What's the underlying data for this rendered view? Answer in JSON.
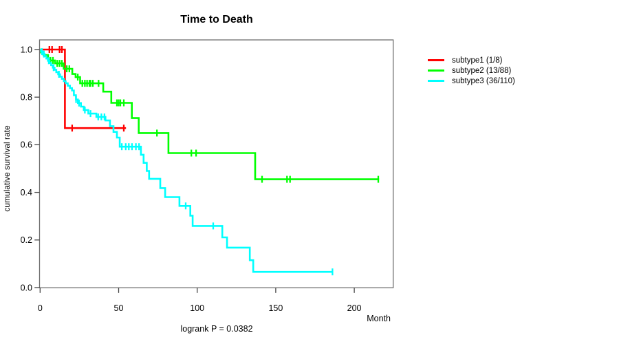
{
  "chart_data": {
    "type": "line",
    "variant": "kaplan-meier-step",
    "title": "Time to Death",
    "xlabel": "Month",
    "ylabel": "cumulative survival rate",
    "annotation": "logrank P = 0.0382",
    "x_ticks": [
      0,
      50,
      100,
      150,
      200
    ],
    "y_ticks": [
      "0.0",
      "0.2",
      "0.4",
      "0.6",
      "0.8",
      "1.0"
    ],
    "xlim": [
      0,
      225
    ],
    "ylim": [
      0.0,
      1.0
    ],
    "grid": "off",
    "legend_position": "right-outside",
    "series": [
      {
        "name": "subtype1 (1/8)",
        "color": "#FF0000",
        "steps": [
          [
            0,
            1.0
          ],
          [
            15.8,
            0.67
          ]
        ],
        "end": 54.7,
        "censors": [
          [
            5.9,
            1.0
          ],
          [
            7.6,
            1.0
          ],
          [
            12.4,
            1.0
          ],
          [
            13.9,
            1.0
          ],
          [
            20.4,
            0.67
          ],
          [
            53.3,
            0.67
          ]
        ]
      },
      {
        "name": "subtype2 (13/88)",
        "color": "#00FF00",
        "steps": [
          [
            0,
            1.0
          ],
          [
            0.5,
            0.988
          ],
          [
            2.2,
            0.977
          ],
          [
            5.1,
            0.954
          ],
          [
            9.5,
            0.942
          ],
          [
            15.0,
            0.919
          ],
          [
            20.5,
            0.897
          ],
          [
            22.6,
            0.884
          ],
          [
            25.5,
            0.858
          ],
          [
            40.2,
            0.823
          ],
          [
            45.3,
            0.776
          ],
          [
            58.4,
            0.712
          ],
          [
            62.8,
            0.649
          ],
          [
            81.7,
            0.565
          ],
          [
            136.9,
            0.455
          ]
        ],
        "end": 215.8,
        "censors": [
          [
            6.6,
            0.954
          ],
          [
            8.2,
            0.954
          ],
          [
            10.9,
            0.942
          ],
          [
            12.4,
            0.942
          ],
          [
            13.9,
            0.942
          ],
          [
            17.0,
            0.919
          ],
          [
            18.6,
            0.919
          ],
          [
            24.0,
            0.884
          ],
          [
            26.9,
            0.858
          ],
          [
            28.5,
            0.858
          ],
          [
            29.9,
            0.858
          ],
          [
            31.4,
            0.858
          ],
          [
            32.1,
            0.858
          ],
          [
            33.6,
            0.858
          ],
          [
            37.2,
            0.858
          ],
          [
            48.9,
            0.776
          ],
          [
            50.0,
            0.776
          ],
          [
            51.1,
            0.776
          ],
          [
            53.3,
            0.776
          ],
          [
            74.4,
            0.649
          ],
          [
            96.3,
            0.565
          ],
          [
            99.3,
            0.565
          ],
          [
            141.3,
            0.455
          ],
          [
            157.2,
            0.455
          ],
          [
            159.1,
            0.455
          ],
          [
            215.3,
            0.455
          ]
        ]
      },
      {
        "name": "subtype3 (36/110)",
        "color": "#00FFFF",
        "steps": [
          [
            0,
            1.0
          ],
          [
            0.7,
            0.991
          ],
          [
            1.8,
            0.981
          ],
          [
            2.9,
            0.972
          ],
          [
            4.0,
            0.962
          ],
          [
            5.0,
            0.953
          ],
          [
            6.0,
            0.943
          ],
          [
            7.0,
            0.934
          ],
          [
            8.1,
            0.924
          ],
          [
            9.2,
            0.915
          ],
          [
            10.3,
            0.905
          ],
          [
            11.5,
            0.896
          ],
          [
            12.7,
            0.886
          ],
          [
            13.9,
            0.877
          ],
          [
            15.1,
            0.867
          ],
          [
            16.3,
            0.858
          ],
          [
            17.6,
            0.848
          ],
          [
            19.0,
            0.838
          ],
          [
            20.3,
            0.828
          ],
          [
            21.5,
            0.808
          ],
          [
            22.8,
            0.79
          ],
          [
            24.1,
            0.775
          ],
          [
            26.0,
            0.76
          ],
          [
            27.8,
            0.746
          ],
          [
            30.7,
            0.731
          ],
          [
            35.8,
            0.717
          ],
          [
            41.6,
            0.702
          ],
          [
            44.5,
            0.678
          ],
          [
            46.7,
            0.654
          ],
          [
            48.9,
            0.63
          ],
          [
            50.7,
            0.592
          ],
          [
            64.2,
            0.558
          ],
          [
            65.9,
            0.524
          ],
          [
            67.9,
            0.49
          ],
          [
            69.4,
            0.457
          ],
          [
            76.5,
            0.418
          ],
          [
            79.6,
            0.38
          ],
          [
            88.7,
            0.343
          ],
          [
            95.6,
            0.302
          ],
          [
            97.1,
            0.259
          ],
          [
            116.0,
            0.211
          ],
          [
            119.0,
            0.168
          ],
          [
            133.5,
            0.115
          ],
          [
            135.7,
            0.066
          ]
        ],
        "end": 186.1,
        "censors": [
          [
            1.2,
            0.991
          ],
          [
            2.4,
            0.981
          ],
          [
            5.5,
            0.953
          ],
          [
            8.6,
            0.924
          ],
          [
            12.0,
            0.896
          ],
          [
            22.9,
            0.79
          ],
          [
            24.8,
            0.775
          ],
          [
            28.5,
            0.746
          ],
          [
            32.1,
            0.731
          ],
          [
            37.0,
            0.717
          ],
          [
            39.0,
            0.717
          ],
          [
            41.0,
            0.717
          ],
          [
            52.0,
            0.592
          ],
          [
            54.5,
            0.592
          ],
          [
            56.5,
            0.592
          ],
          [
            58.5,
            0.592
          ],
          [
            61.0,
            0.592
          ],
          [
            63.0,
            0.592
          ],
          [
            92.7,
            0.343
          ],
          [
            110.2,
            0.259
          ],
          [
            186.1,
            0.066
          ]
        ]
      }
    ]
  }
}
